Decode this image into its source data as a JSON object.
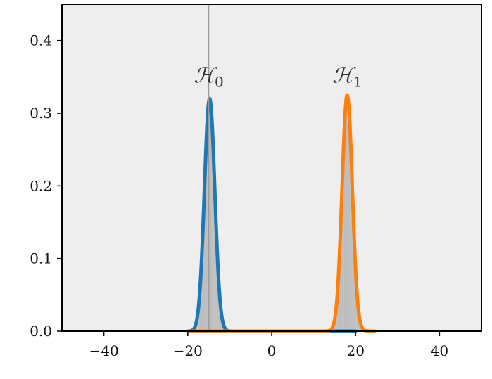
{
  "chart_data": {
    "type": "area",
    "xlim": [
      -50,
      50
    ],
    "ylim": [
      0,
      0.45
    ],
    "x_ticks": [
      -40,
      -20,
      0,
      20,
      40
    ],
    "x_tick_labels": [
      "−40",
      "−20",
      "0",
      "20",
      "40"
    ],
    "y_ticks": [
      0.0,
      0.1,
      0.2,
      0.3,
      0.4
    ],
    "y_tick_labels": [
      "0.0",
      "0.1",
      "0.2",
      "0.3",
      "0.4"
    ],
    "grid": false,
    "background_color": "#eeeeee",
    "vertical_line": {
      "x": -15,
      "color": "#999999"
    },
    "annotations": [
      {
        "symbol": "ℋ",
        "subscript": "0",
        "x": -15,
        "y": 0.352
      },
      {
        "symbol": "ℋ",
        "subscript": "1",
        "x": 18,
        "y": 0.352
      }
    ],
    "series": [
      {
        "color": "#1f77b4",
        "mean": -14.8,
        "sd": 1.24,
        "peak": 0.32,
        "x_range": [
          -20,
          20
        ]
      },
      {
        "color": "#ff7f0e",
        "mean": 18.0,
        "sd": 1.22,
        "peak": 0.325,
        "x_range": [
          -20,
          24.5
        ]
      }
    ],
    "histogram_color": "#c8c8c8"
  }
}
